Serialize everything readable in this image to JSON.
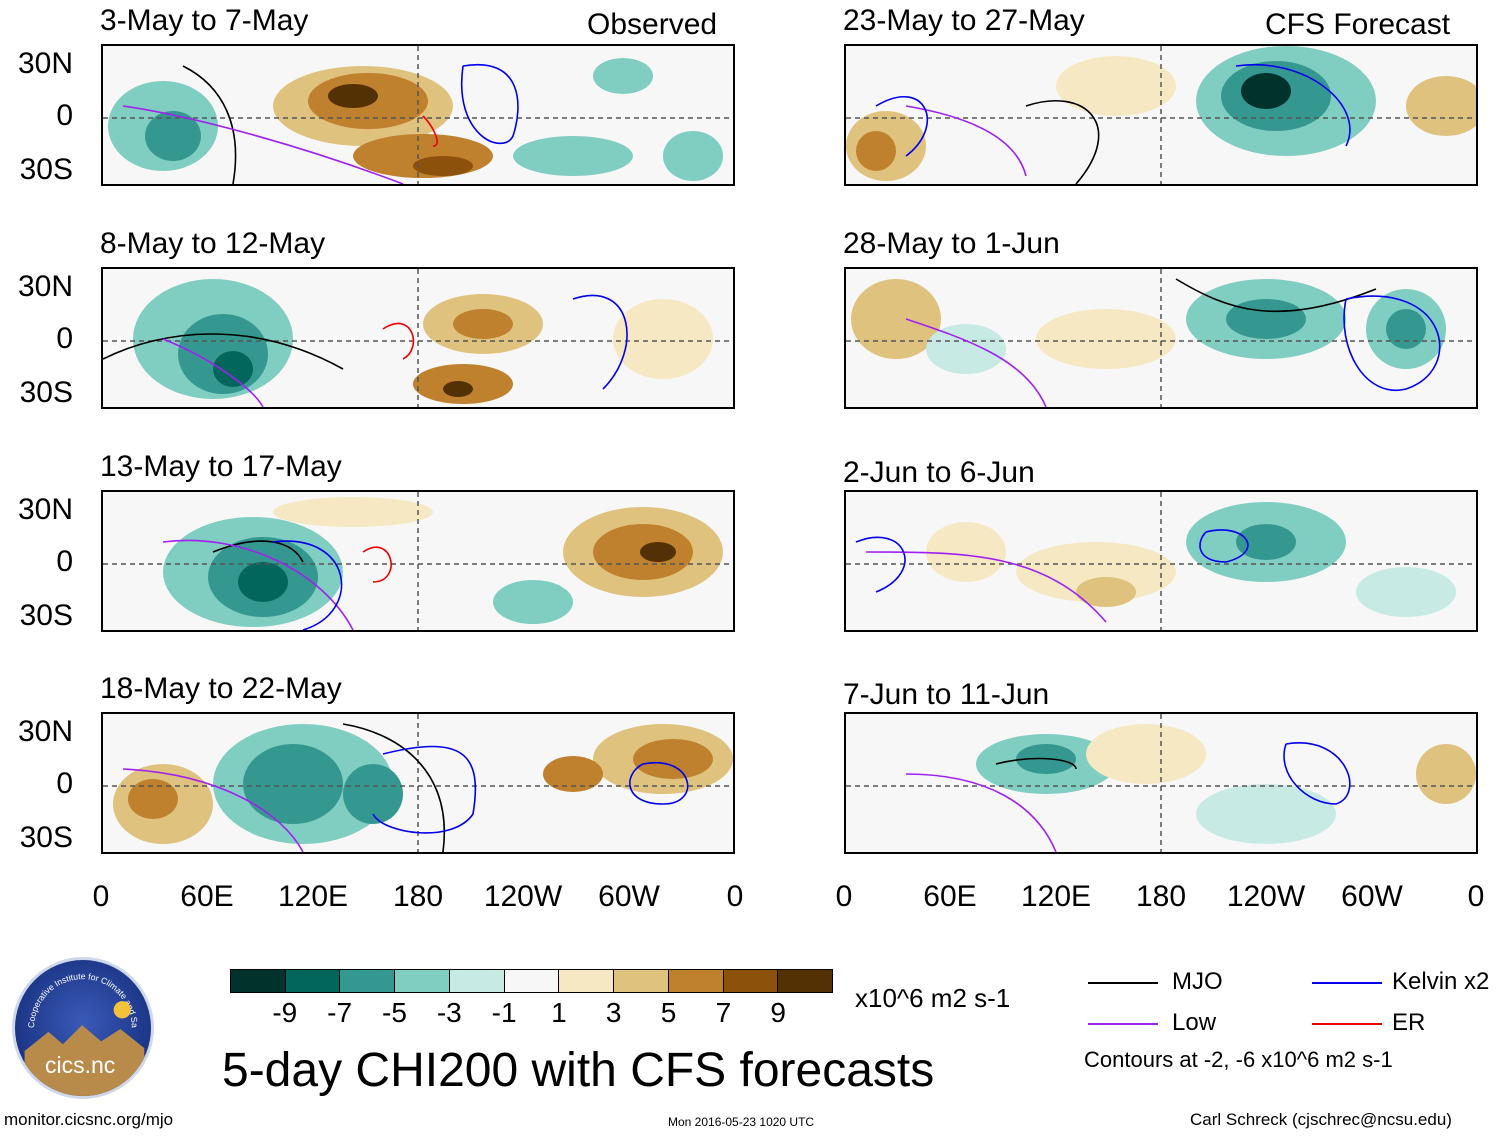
{
  "header": {
    "left": "Observed",
    "right": "CFS Forecast"
  },
  "panels_observed": [
    "3-May to 7-May",
    "8-May to 12-May",
    "13-May to 17-May",
    "18-May to 22-May"
  ],
  "panels_forecast": [
    "23-May to 27-May",
    "28-May to 1-Jun",
    "2-Jun to 6-Jun",
    "7-Jun to 11-Jun"
  ],
  "lat_labels": [
    "30N",
    "0",
    "30S"
  ],
  "lon_labels": [
    "0",
    "60E",
    "120E",
    "180",
    "120W",
    "60W",
    "0"
  ],
  "colorbar": {
    "colors": [
      "#01332c",
      "#02665c",
      "#359890",
      "#80cdc1",
      "#c7eae5",
      "#f7f7f7",
      "#f6e8c3",
      "#dfc27d",
      "#bf812d",
      "#8c510a",
      "#543005"
    ],
    "ticks": [
      "-9",
      "-7",
      "-5",
      "-3",
      "-1",
      "1",
      "3",
      "5",
      "7",
      "9"
    ],
    "units": "x10^6 m2 s-1"
  },
  "legend": {
    "items": [
      {
        "label": "MJO",
        "color": "#000000"
      },
      {
        "label": "Kelvin x2",
        "color": "#0000ee"
      },
      {
        "label": "Low",
        "color": "#a020f0"
      },
      {
        "label": "ER",
        "color": "#ee0000"
      }
    ],
    "note": "Contours at -2, -6 x10^6 m2 s-1"
  },
  "logo_text": "cics.nc",
  "logo_ring_text": "Cooperative Institute for Climate and Satellites",
  "title": "5-day CHI200 with CFS forecasts",
  "footer": {
    "left": "monitor.cicsnc.org/mjo",
    "center": "Mon 2016-05-23 1020 UTC",
    "right": "Carl Schreck (cjschrec@ncsu.edu)"
  }
}
